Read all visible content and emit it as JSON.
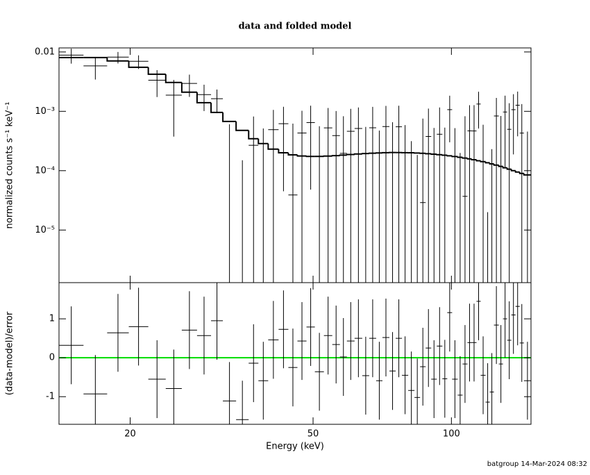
{
  "chart_data": {
    "type": "errorbar",
    "title": "data and folded model",
    "x_label": "Energy (keV)",
    "x_log": true,
    "xlim": [
      14,
      149
    ],
    "xticks": [
      20,
      50,
      100
    ],
    "bins": [
      14.0,
      15.83,
      17.82,
      19.86,
      21.9,
      23.9,
      25.9,
      27.96,
      29.99,
      31.82,
      34.0,
      36.21,
      38.02,
      39.93,
      42.07,
      44.18,
      46.23,
      48.38,
      50.45,
      52.79,
      55.05,
      57.2,
      59.24,
      61.56,
      63.97,
      66.24,
      68.59,
      70.78,
      73.3,
      75.64,
      78.05,
      80.54,
      83.11,
      85.47,
      87.89,
      90.38,
      92.94,
      95.57,
      97.94,
      100.36,
      103.2,
      105.75,
      108.37,
      110.66,
      113.4,
      115.8,
      118.67,
      121.18,
      123.75,
      126.81,
      129.49,
      132.23,
      135.03,
      137.89,
      140.81,
      143.79,
      149.0
    ],
    "panels": [
      {
        "y_label": "normalized counts s⁻¹ keV⁻¹",
        "y_log": true,
        "ylim": [
          1.3e-06,
          0.0117
        ],
        "yticks": [
          0.01,
          {
            "value": 0.001,
            "label": "10⁻³"
          },
          {
            "value": 0.0001,
            "label": "10⁻⁴"
          },
          {
            "value": 1e-05,
            "label": "10⁻⁵"
          }
        ],
        "color": "#000000",
        "values": [
          0.00886,
          0.00583,
          0.0082,
          0.00697,
          0.00334,
          0.001875,
          0.00295,
          0.00191,
          0.00163,
          -4.5e-05,
          -0.0004,
          0.000268,
          -4.3e-05,
          0.000491,
          0.000619,
          3.9e-05,
          0.000431,
          0.000646,
          -4.4e-05,
          0.000526,
          0.00039,
          0.000196,
          0.000461,
          0.000514,
          -0.000107,
          0.000528,
          -0.000196,
          0.000554,
          -3.1e-05,
          0.000549,
          -0.000115,
          -0.000396,
          -0.000534,
          2.9e-05,
          0.000377,
          -0.000218,
          0.000411,
          -0.000227,
          0.001067,
          -0.000253,
          -0.000583,
          3.7e-05,
          0.000469,
          0.000467,
          0.001327,
          -0.000228,
          -0.00081,
          -0.000607,
          0.000835,
          -1.9e-05,
          0.000974,
          0.000498,
          0.001066,
          0.001265,
          0.00043,
          -0.000447
        ],
        "errors": [
          0.0025,
          0.0024,
          0.0018,
          0.0018,
          0.0016,
          0.0015,
          0.0012,
          0.0009,
          0.0007,
          0.00065,
          0.00055,
          0.00055,
          0.000558,
          0.000566,
          0.000574,
          0.000582,
          0.00059,
          0.000598,
          0.000606,
          0.000614,
          0.000622,
          0.00063,
          0.000638,
          0.000646,
          0.000654,
          0.000662,
          0.00067,
          0.000678,
          0.000686,
          0.000694,
          0.000702,
          0.00071,
          0.000718,
          0.000726,
          0.000734,
          0.000742,
          0.00075,
          0.000758,
          0.000766,
          0.000774,
          0.000782,
          0.00079,
          0.000798,
          0.000806,
          0.000814,
          0.000822,
          0.00083,
          0.000838,
          0.000846,
          0.000854,
          0.000862,
          0.00087,
          0.000878,
          0.000886,
          0.000894,
          0.000902
        ],
        "model": [
          0.00806,
          0.00806,
          0.00705,
          0.00553,
          0.00422,
          0.00306,
          0.0021,
          0.0014,
          0.00096,
          0.000676,
          0.000477,
          0.000345,
          0.000286,
          0.000231,
          0.0002,
          0.000185,
          0.000177,
          0.000174,
          0.000174,
          0.000176,
          0.000179,
          0.000183,
          0.000187,
          0.000191,
          0.000194,
          0.000197,
          0.000199,
          0.000201,
          0.000202,
          0.000202,
          0.000201,
          0.0002,
          0.000198,
          0.000196,
          0.000193,
          0.00019,
          0.000186,
          0.000182,
          0.000178,
          0.000173,
          0.000168,
          0.000163,
          0.000158,
          0.000153,
          0.000147,
          0.000142,
          0.000136,
          0.00013,
          0.000124,
          0.000118,
          0.000112,
          0.000106,
          0.0001,
          9.5e-05,
          9e-05,
          8.5e-05
        ],
        "model_color": "#000000"
      },
      {
        "y_label": "(data-model)/error",
        "ylim": [
          -1.71,
          1.93
        ],
        "yticks": [
          -1,
          0,
          1
        ],
        "color": "#000000",
        "values": [
          0.32,
          -0.93,
          0.64,
          0.8,
          -0.55,
          -0.79,
          0.71,
          0.57,
          0.95,
          -1.11,
          -1.59,
          -0.14,
          -0.59,
          0.46,
          0.73,
          -0.25,
          0.43,
          0.79,
          -0.36,
          0.57,
          0.34,
          0.02,
          0.43,
          0.5,
          -0.46,
          0.5,
          -0.59,
          0.52,
          -0.34,
          0.5,
          -0.45,
          -0.84,
          -1.02,
          -0.23,
          0.25,
          -0.55,
          0.3,
          -0.54,
          1.16,
          -0.55,
          -0.96,
          -0.16,
          0.39,
          0.39,
          1.45,
          -0.45,
          -1.14,
          -0.88,
          0.84,
          -0.16,
          1.0,
          0.45,
          1.1,
          1.32,
          0.38,
          -0.59
        ],
        "error": 1,
        "reference_line": 0,
        "reference_color": "#00dd00"
      }
    ],
    "footer": "batgroup 14-Mar-2024 08:32"
  }
}
